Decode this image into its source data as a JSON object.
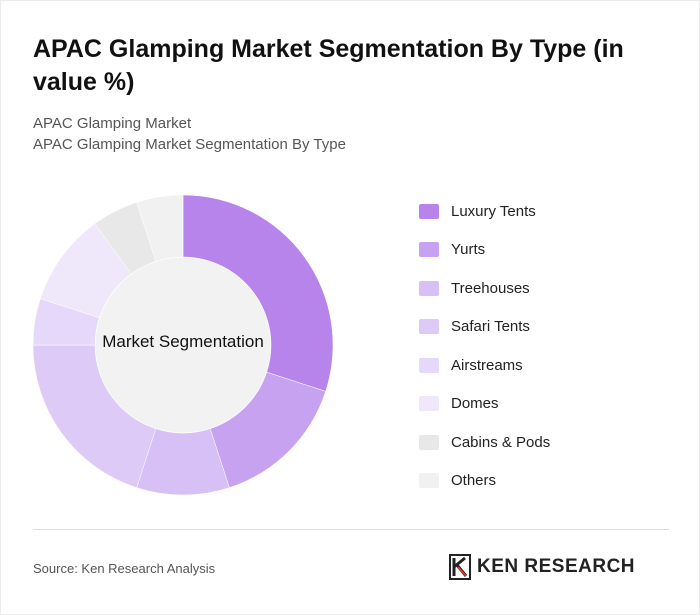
{
  "title": "APAC Glamping Market Segmentation By Type (in value %)",
  "subtitle_1": "APAC Glamping Market",
  "subtitle_2": "APAC Glamping Market Segmentation By Type",
  "source": "Source: Ken Research Analysis",
  "brand": "KEN RESEARCH",
  "chart_data": {
    "type": "pie",
    "center_label": "Market Segmentation",
    "categories": [
      "Luxury Tents",
      "Yurts",
      "Treehouses",
      "Safari Tents",
      "Airstreams",
      "Domes",
      "Cabins & Pods",
      "Others"
    ],
    "values": [
      30,
      15,
      10,
      20,
      5,
      10,
      5,
      5
    ],
    "colors": [
      "#b684ea",
      "#c7a2f1",
      "#d7c0f6",
      "#ddcaf7",
      "#e6d8fa",
      "#efe8fb",
      "#e8e8e8",
      "#f1f1f1"
    ],
    "legend_position": "right"
  }
}
